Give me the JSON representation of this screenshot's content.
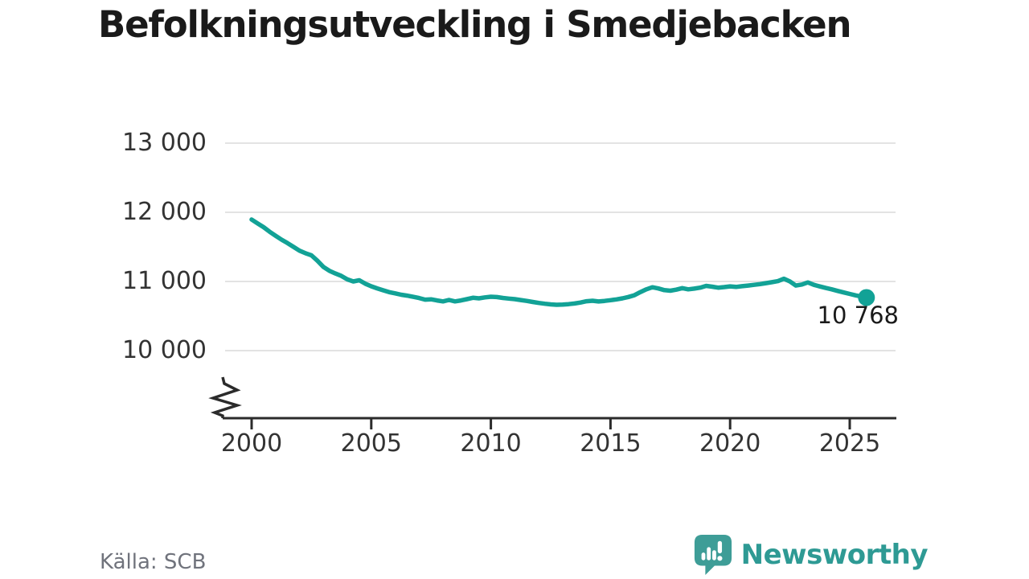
{
  "title": "Befolkningsutveckling i Smedjebacken",
  "source": "Källa: SCB",
  "end_label": "10 768",
  "brand": {
    "name": "Newsworthy"
  },
  "colors": {
    "line": "#12a296",
    "grid": "#e3e3e3",
    "axis": "#2b2b2b",
    "tick_text": "#333333",
    "title_text": "#1a1a1a",
    "muted_text": "#70737c",
    "brand_icon": "#3e9d97",
    "brand_text": "#2e9a94"
  },
  "chart_data": {
    "type": "line",
    "title": "Befolkningsutveckling i Smedjebacken",
    "xlabel": "",
    "ylabel": "",
    "grid": "horizontal-only",
    "legend": "none",
    "axis_break": true,
    "xlim": [
      1998.8,
      2026.9
    ],
    "ylim": [
      9800,
      13400
    ],
    "x_ticks": [
      2000,
      2005,
      2010,
      2015,
      2020,
      2025
    ],
    "x_tick_labels": [
      "2000",
      "2005",
      "2010",
      "2015",
      "2020",
      "2025"
    ],
    "y_ticks": [
      10000,
      11000,
      12000,
      13000
    ],
    "y_tick_labels": [
      "10 000",
      "11 000",
      "12 000",
      "13 000"
    ],
    "end_point_value": 10768,
    "end_point_label": "10 768",
    "x": [
      2000.0,
      2000.25,
      2000.5,
      2000.75,
      2001.0,
      2001.25,
      2001.5,
      2001.75,
      2002.0,
      2002.25,
      2002.5,
      2002.75,
      2003.0,
      2003.25,
      2003.5,
      2003.75,
      2004.0,
      2004.25,
      2004.5,
      2004.75,
      2005.0,
      2005.25,
      2005.5,
      2005.75,
      2006.0,
      2006.25,
      2006.5,
      2006.75,
      2007.0,
      2007.25,
      2007.5,
      2007.75,
      2008.0,
      2008.25,
      2008.5,
      2008.75,
      2009.0,
      2009.25,
      2009.5,
      2009.75,
      2010.0,
      2010.25,
      2010.5,
      2010.75,
      2011.0,
      2011.25,
      2011.5,
      2011.75,
      2012.0,
      2012.25,
      2012.5,
      2012.75,
      2013.0,
      2013.25,
      2013.5,
      2013.75,
      2014.0,
      2014.25,
      2014.5,
      2014.75,
      2015.0,
      2015.25,
      2015.5,
      2015.75,
      2016.0,
      2016.25,
      2016.5,
      2016.75,
      2017.0,
      2017.25,
      2017.5,
      2017.75,
      2018.0,
      2018.25,
      2018.5,
      2018.75,
      2019.0,
      2019.25,
      2019.5,
      2019.75,
      2020.0,
      2020.25,
      2020.5,
      2020.75,
      2021.0,
      2021.25,
      2021.5,
      2021.75,
      2022.0,
      2022.25,
      2022.5,
      2022.75,
      2023.0,
      2023.25,
      2023.5,
      2023.75,
      2024.0,
      2024.25,
      2024.5,
      2024.75,
      2025.0,
      2025.25,
      2025.5,
      2025.7
    ],
    "series": [
      {
        "name": "Befolkning",
        "values": [
          11895,
          11840,
          11785,
          11720,
          11660,
          11605,
          11555,
          11500,
          11445,
          11408,
          11378,
          11300,
          11210,
          11155,
          11115,
          11080,
          11030,
          11000,
          11018,
          10968,
          10930,
          10900,
          10872,
          10845,
          10828,
          10808,
          10795,
          10778,
          10760,
          10737,
          10742,
          10726,
          10712,
          10733,
          10712,
          10726,
          10744,
          10764,
          10756,
          10770,
          10779,
          10774,
          10762,
          10752,
          10744,
          10731,
          10719,
          10704,
          10690,
          10678,
          10669,
          10663,
          10665,
          10672,
          10681,
          10695,
          10714,
          10721,
          10711,
          10719,
          10729,
          10741,
          10756,
          10776,
          10801,
          10846,
          10886,
          10916,
          10899,
          10874,
          10866,
          10881,
          10904,
          10886,
          10896,
          10911,
          10936,
          10924,
          10911,
          10919,
          10929,
          10921,
          10931,
          10941,
          10951,
          10962,
          10975,
          10989,
          11005,
          11040,
          11000,
          10941,
          10956,
          10986,
          10951,
          10928,
          10906,
          10886,
          10863,
          10841,
          10820,
          10799,
          10781,
          10768
        ]
      }
    ]
  }
}
